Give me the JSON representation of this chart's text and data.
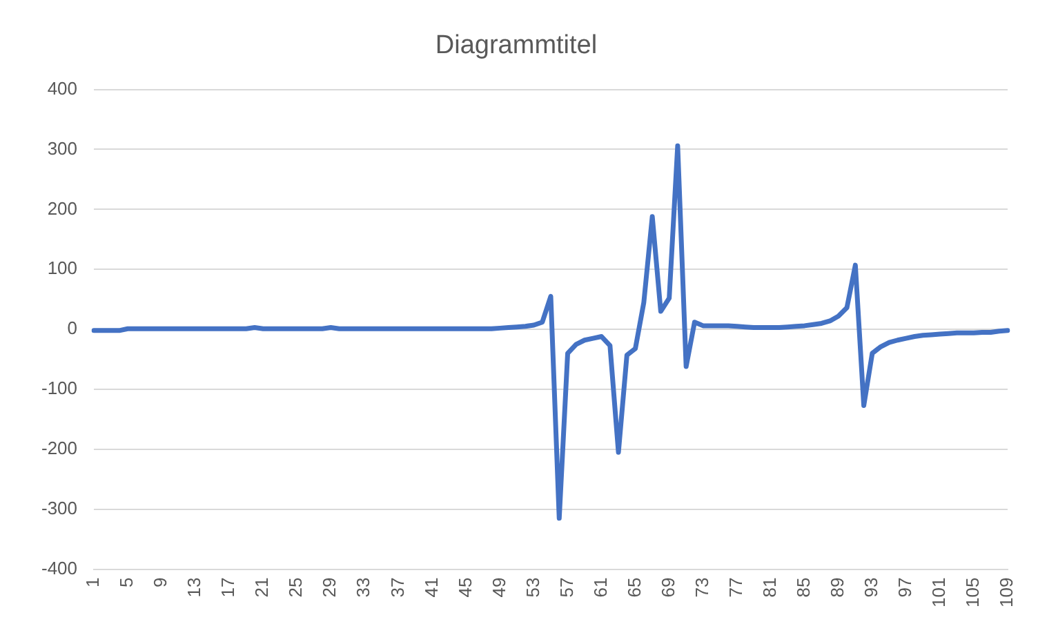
{
  "chart_data": {
    "type": "line",
    "title": "Diagrammtitel",
    "categories": [
      "1",
      null,
      null,
      null,
      "5",
      null,
      null,
      null,
      "9",
      null,
      null,
      null,
      "13",
      null,
      null,
      null,
      "17",
      null,
      null,
      null,
      "21",
      null,
      null,
      null,
      "25",
      null,
      null,
      null,
      "29",
      null,
      null,
      null,
      "33",
      null,
      null,
      null,
      "37",
      null,
      null,
      null,
      "41",
      null,
      null,
      null,
      "45",
      null,
      null,
      null,
      "49",
      null,
      null,
      null,
      "53",
      null,
      null,
      null,
      "57",
      null,
      null,
      null,
      "61",
      null,
      null,
      null,
      "65",
      null,
      null,
      null,
      "69",
      null,
      null,
      null,
      "73",
      null,
      null,
      null,
      "77",
      null,
      null,
      null,
      "81",
      null,
      null,
      null,
      "85",
      null,
      null,
      null,
      "89",
      null,
      null,
      null,
      "93",
      null,
      null,
      null,
      "97",
      null,
      null,
      null,
      "101",
      null,
      null,
      null,
      "105",
      null,
      null,
      null,
      "109"
    ],
    "series": [
      {
        "color": "#4472c4",
        "values": [
          -2,
          -2,
          -2,
          -2,
          1,
          1,
          1,
          1,
          1,
          1,
          1,
          1,
          1,
          1,
          1,
          1,
          1,
          1,
          1,
          3,
          1,
          1,
          1,
          1,
          1,
          1,
          1,
          1,
          3,
          1,
          1,
          1,
          1,
          1,
          1,
          1,
          1,
          1,
          1,
          1,
          1,
          1,
          1,
          1,
          1,
          1,
          1,
          1,
          2,
          3,
          4,
          5,
          7,
          12,
          55,
          -315,
          -40,
          -25,
          -18,
          -15,
          -12,
          -27,
          -205,
          -43,
          -32,
          45,
          188,
          30,
          52,
          306,
          -62,
          12,
          6,
          6,
          6,
          6,
          5,
          4,
          3,
          3,
          3,
          3,
          4,
          5,
          6,
          8,
          10,
          14,
          22,
          36,
          107,
          -127,
          -40,
          -29,
          -22,
          -18,
          -15,
          -12,
          -10,
          -9,
          -8,
          -7,
          -6,
          -6,
          -6,
          -5,
          -5,
          -3,
          -2
        ]
      }
    ],
    "ylim": [
      -400,
      400
    ],
    "yticks": [
      -400,
      -300,
      -200,
      -100,
      0,
      100,
      200,
      300,
      400
    ],
    "grid": "y",
    "legend": false,
    "marker": "none",
    "line_style": "solid"
  }
}
